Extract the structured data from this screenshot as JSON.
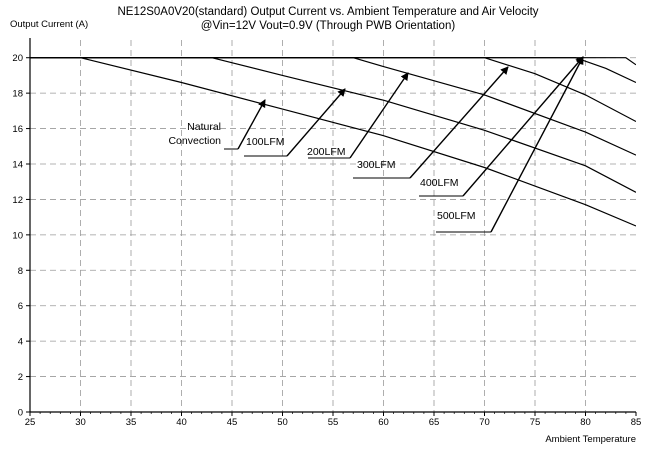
{
  "chart_data": {
    "type": "line",
    "title": "NE12S0A0V20(standard)  Output Current vs. Ambient Temperature and Air Velocity",
    "subtitle": "@Vin=12V Vout=0.9V (Through PWB Orientation)",
    "xlabel": "Ambient Temperature",
    "ylabel": "Output Current (A)",
    "xlim": [
      25,
      85
    ],
    "ylim": [
      0,
      21
    ],
    "x_ticks": [
      "25",
      "30",
      "35",
      "40",
      "45",
      "50",
      "55",
      "60",
      "65",
      "70",
      "75",
      "80",
      "85"
    ],
    "y_ticks": [
      "0",
      "2",
      "4",
      "6",
      "8",
      "10",
      "12",
      "14",
      "16",
      "18",
      "20"
    ],
    "grid": true,
    "series": [
      {
        "name": "Natural Convection",
        "x": [
          25,
          30,
          40,
          50,
          60,
          70,
          80,
          85
        ],
        "y": [
          20,
          20,
          18.6,
          17.1,
          15.6,
          13.8,
          11.7,
          10.5
        ]
      },
      {
        "name": "100LFM",
        "x": [
          25,
          43,
          50,
          60,
          70,
          80,
          85
        ],
        "y": [
          20,
          20,
          19.0,
          17.6,
          15.9,
          13.9,
          12.4
        ]
      },
      {
        "name": "200LFM",
        "x": [
          25,
          57,
          60,
          70,
          80,
          85
        ],
        "y": [
          20,
          20,
          19.5,
          17.9,
          15.8,
          14.5
        ]
      },
      {
        "name": "300LFM",
        "x": [
          25,
          70,
          75,
          80,
          85
        ],
        "y": [
          20,
          20,
          19.1,
          17.9,
          16.4
        ]
      },
      {
        "name": "400LFM",
        "x": [
          25,
          79,
          82,
          85
        ],
        "y": [
          20,
          20,
          19.4,
          18.6
        ]
      },
      {
        "name": "500LFM",
        "x": [
          25,
          84,
          85
        ],
        "y": [
          20,
          20,
          19.6
        ]
      }
    ],
    "annotations": [
      {
        "text": "Natural",
        "text2": "Convection"
      },
      {
        "text": "100LFM"
      },
      {
        "text": "200LFM"
      },
      {
        "text": "300LFM"
      },
      {
        "text": "400LFM"
      },
      {
        "text": "500LFM"
      }
    ]
  }
}
